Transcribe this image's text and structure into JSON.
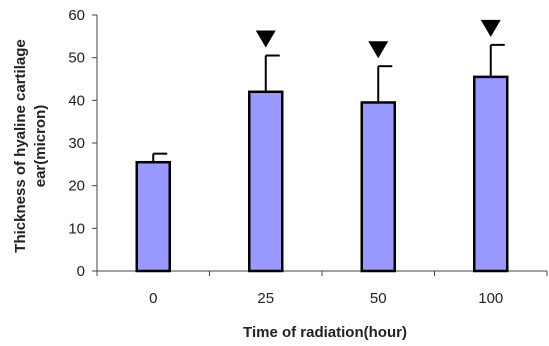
{
  "chart_data": {
    "type": "bar",
    "xlabel": "Time of radiation(hour)",
    "ylabel_line1": "Thickness of hyaline cartilage",
    "ylabel_line2": "ear(micron)",
    "categories": [
      "0",
      "25",
      "50",
      "100"
    ],
    "values": [
      25.5,
      42,
      39.5,
      45.5
    ],
    "error_upper": [
      27.5,
      50.5,
      48,
      53
    ],
    "significance_markers": [
      false,
      true,
      true,
      true
    ],
    "ylim": [
      0,
      60
    ],
    "yticks": [
      0,
      10,
      20,
      30,
      40,
      50,
      60
    ],
    "grid": false,
    "legend": "none",
    "colors": {
      "bar_fill": "#9999ff",
      "bar_stroke": "#000000",
      "axis": "#444444",
      "marker": "#000000"
    }
  }
}
